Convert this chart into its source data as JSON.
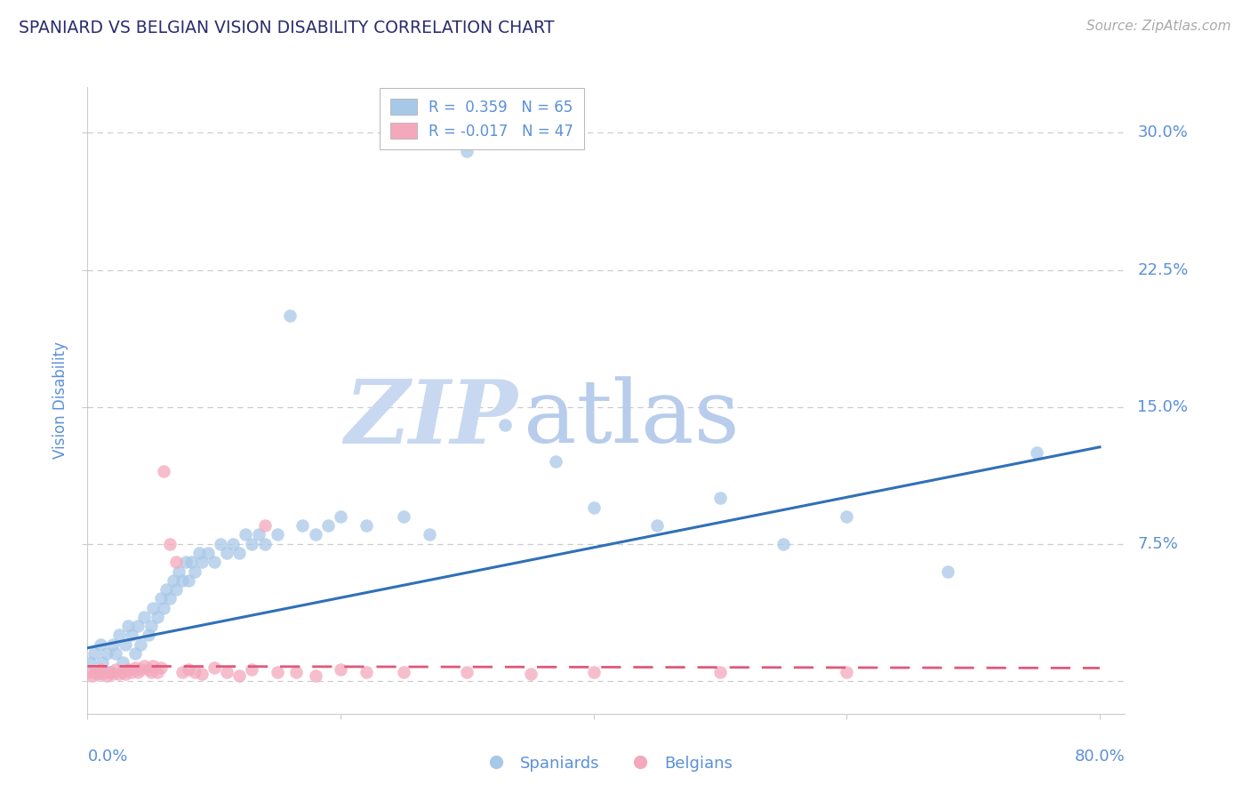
{
  "title": "SPANIARD VS BELGIAN VISION DISABILITY CORRELATION CHART",
  "source": "Source: ZipAtlas.com",
  "ylabel": "Vision Disability",
  "xlim": [
    0.0,
    0.82
  ],
  "ylim": [
    -0.018,
    0.325
  ],
  "watermark_zip": "ZIP",
  "watermark_atlas": "atlas",
  "legend_blue_r": "R =  0.359",
  "legend_blue_n": "N = 65",
  "legend_pink_r": "R = -0.017",
  "legend_pink_n": "N = 47",
  "blue_scatter_color": "#a8c8e8",
  "pink_scatter_color": "#f4a8bc",
  "blue_line_color": "#3070b8",
  "pink_line_color": "#e05878",
  "title_color": "#2b2b6e",
  "axis_tick_color": "#5b90d8",
  "source_color": "#aaaaaa",
  "background_color": "#ffffff",
  "grid_color": "#cccccc",
  "watermark_color_zip": "#c8d8ec",
  "watermark_color_atlas": "#c0d0e8",
  "yticks": [
    0.0,
    0.075,
    0.15,
    0.225,
    0.3
  ],
  "ytick_labels": [
    "",
    "7.5%",
    "15.0%",
    "22.5%",
    "30.0%"
  ],
  "xtick_positions": [
    0.0,
    0.2,
    0.4,
    0.6,
    0.8
  ],
  "spaniards_x": [
    0.002,
    0.005,
    0.008,
    0.01,
    0.012,
    0.015,
    0.018,
    0.02,
    0.022,
    0.025,
    0.028,
    0.03,
    0.032,
    0.035,
    0.038,
    0.04,
    0.042,
    0.045,
    0.048,
    0.05,
    0.052,
    0.055,
    0.058,
    0.06,
    0.062,
    0.065,
    0.068,
    0.07,
    0.072,
    0.075,
    0.078,
    0.08,
    0.082,
    0.085,
    0.088,
    0.09,
    0.095,
    0.1,
    0.105,
    0.11,
    0.115,
    0.12,
    0.125,
    0.13,
    0.135,
    0.14,
    0.15,
    0.16,
    0.17,
    0.18,
    0.19,
    0.2,
    0.22,
    0.25,
    0.27,
    0.3,
    0.33,
    0.37,
    0.4,
    0.45,
    0.5,
    0.55,
    0.6,
    0.68,
    0.75
  ],
  "spaniards_y": [
    0.01,
    0.015,
    0.005,
    0.02,
    0.01,
    0.015,
    0.005,
    0.02,
    0.015,
    0.025,
    0.01,
    0.02,
    0.03,
    0.025,
    0.015,
    0.03,
    0.02,
    0.035,
    0.025,
    0.03,
    0.04,
    0.035,
    0.045,
    0.04,
    0.05,
    0.045,
    0.055,
    0.05,
    0.06,
    0.055,
    0.065,
    0.055,
    0.065,
    0.06,
    0.07,
    0.065,
    0.07,
    0.065,
    0.075,
    0.07,
    0.075,
    0.07,
    0.08,
    0.075,
    0.08,
    0.075,
    0.08,
    0.2,
    0.085,
    0.08,
    0.085,
    0.09,
    0.085,
    0.09,
    0.08,
    0.29,
    0.14,
    0.12,
    0.095,
    0.085,
    0.1,
    0.075,
    0.09,
    0.06,
    0.125
  ],
  "belgians_x": [
    0.002,
    0.004,
    0.006,
    0.008,
    0.01,
    0.012,
    0.015,
    0.018,
    0.02,
    0.022,
    0.025,
    0.028,
    0.03,
    0.032,
    0.035,
    0.038,
    0.04,
    0.042,
    0.045,
    0.048,
    0.05,
    0.052,
    0.055,
    0.058,
    0.06,
    0.065,
    0.07,
    0.075,
    0.08,
    0.085,
    0.09,
    0.1,
    0.11,
    0.12,
    0.13,
    0.14,
    0.15,
    0.165,
    0.18,
    0.2,
    0.22,
    0.25,
    0.3,
    0.35,
    0.4,
    0.5,
    0.6
  ],
  "belgians_y": [
    0.005,
    0.003,
    0.005,
    0.004,
    0.006,
    0.004,
    0.003,
    0.005,
    0.004,
    0.006,
    0.004,
    0.005,
    0.004,
    0.006,
    0.005,
    0.007,
    0.005,
    0.006,
    0.008,
    0.006,
    0.005,
    0.008,
    0.005,
    0.007,
    0.115,
    0.075,
    0.065,
    0.005,
    0.006,
    0.005,
    0.004,
    0.007,
    0.005,
    0.003,
    0.006,
    0.085,
    0.005,
    0.005,
    0.003,
    0.006,
    0.005,
    0.005,
    0.005,
    0.004,
    0.005,
    0.005,
    0.005
  ],
  "trend_blue_x0": 0.0,
  "trend_blue_y0": 0.018,
  "trend_blue_x1": 0.8,
  "trend_blue_y1": 0.128,
  "trend_pink_x0": 0.0,
  "trend_pink_y0": 0.008,
  "trend_pink_x1": 0.8,
  "trend_pink_y1": 0.007
}
